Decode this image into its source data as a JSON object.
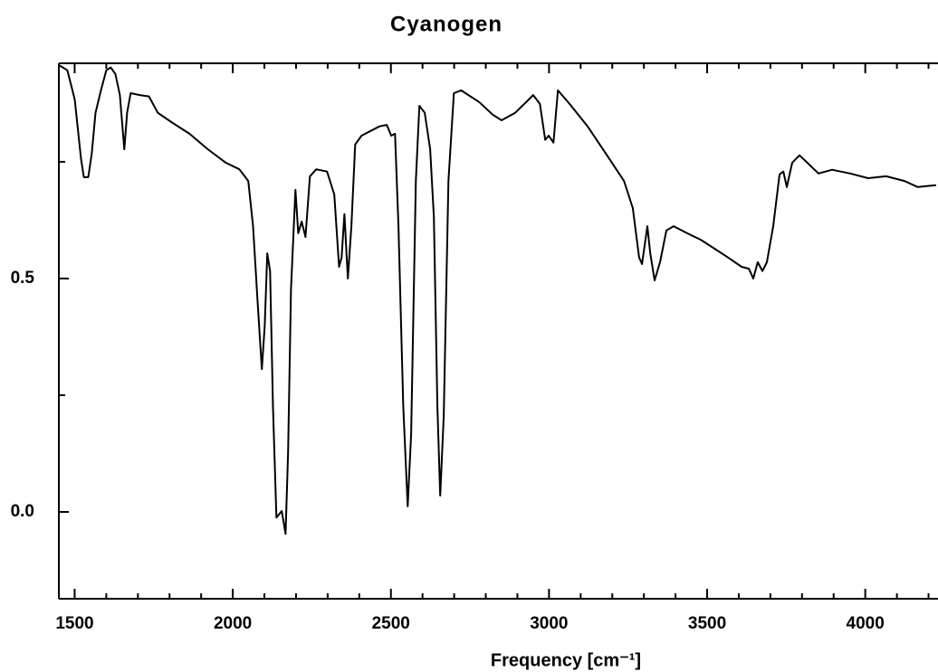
{
  "chart_data": {
    "type": "line",
    "title": "Cyanogen",
    "x_label": "Frequency [cm⁻¹]",
    "xlim": [
      1450,
      4230
    ],
    "ylim": [
      -0.186,
      0.961
    ],
    "xticks": [
      1500,
      2000,
      2500,
      3000,
      3500,
      4000
    ],
    "xticks_minor": [
      1600,
      1700,
      1800,
      1900,
      2100,
      2200,
      2300,
      2400,
      2600,
      2700,
      2800,
      2900,
      3100,
      3200,
      3300,
      3400,
      3600,
      3700,
      3800,
      3900,
      4100,
      4200
    ],
    "yticks": [
      {
        "value": 0,
        "label": "0.0"
      },
      0.5
    ],
    "yticks_minor": [
      0.25,
      0.75
    ],
    "color": "#000000",
    "x": [
      1451,
      1477,
      1500,
      1520,
      1529,
      1543,
      1554,
      1566,
      1583,
      1600,
      1614,
      1629,
      1643,
      1657,
      1666,
      1677,
      1706,
      1735,
      1763,
      1806,
      1863,
      1921,
      1978,
      2021,
      2049,
      2064,
      2078,
      2092,
      2101,
      2109,
      2118,
      2127,
      2138,
      2155,
      2167,
      2175,
      2184,
      2198,
      2207,
      2218,
      2230,
      2244,
      2264,
      2298,
      2321,
      2336,
      2344,
      2353,
      2364,
      2375,
      2387,
      2407,
      2464,
      2487,
      2501,
      2513,
      2524,
      2539,
      2553,
      2564,
      2579,
      2590,
      2607,
      2624,
      2636,
      2647,
      2656,
      2667,
      2682,
      2699,
      2722,
      2779,
      2822,
      2850,
      2893,
      2922,
      2950,
      2971,
      2988,
      2999,
      3014,
      3028,
      3065,
      3122,
      3180,
      3237,
      3265,
      3285,
      3294,
      3311,
      3320,
      3334,
      3351,
      3371,
      3394,
      3437,
      3480,
      3523,
      3566,
      3609,
      3632,
      3646,
      3660,
      3675,
      3689,
      3709,
      3729,
      3741,
      3752,
      3769,
      3792,
      3823,
      3852,
      3895,
      3952,
      4009,
      4066,
      4124,
      4166,
      4224
    ],
    "values": [
      0.957,
      0.946,
      0.884,
      0.758,
      0.717,
      0.717,
      0.767,
      0.855,
      0.903,
      0.946,
      0.952,
      0.938,
      0.893,
      0.777,
      0.855,
      0.897,
      0.893,
      0.89,
      0.855,
      0.835,
      0.81,
      0.777,
      0.748,
      0.734,
      0.709,
      0.612,
      0.457,
      0.306,
      0.399,
      0.554,
      0.516,
      0.225,
      -0.012,
      0.002,
      -0.047,
      0.128,
      0.477,
      0.69,
      0.597,
      0.622,
      0.589,
      0.719,
      0.734,
      0.729,
      0.68,
      0.525,
      0.545,
      0.638,
      0.5,
      0.612,
      0.787,
      0.806,
      0.826,
      0.829,
      0.806,
      0.81,
      0.612,
      0.225,
      0.012,
      0.167,
      0.709,
      0.87,
      0.855,
      0.777,
      0.632,
      0.225,
      0.035,
      0.205,
      0.709,
      0.897,
      0.903,
      0.878,
      0.851,
      0.839,
      0.855,
      0.874,
      0.893,
      0.874,
      0.797,
      0.806,
      0.791,
      0.903,
      0.874,
      0.826,
      0.767,
      0.709,
      0.651,
      0.545,
      0.531,
      0.612,
      0.554,
      0.496,
      0.535,
      0.603,
      0.612,
      0.597,
      0.583,
      0.564,
      0.545,
      0.525,
      0.521,
      0.5,
      0.535,
      0.516,
      0.535,
      0.612,
      0.723,
      0.729,
      0.696,
      0.748,
      0.764,
      0.744,
      0.725,
      0.733,
      0.725,
      0.715,
      0.719,
      0.709,
      0.696,
      0.7
    ]
  }
}
